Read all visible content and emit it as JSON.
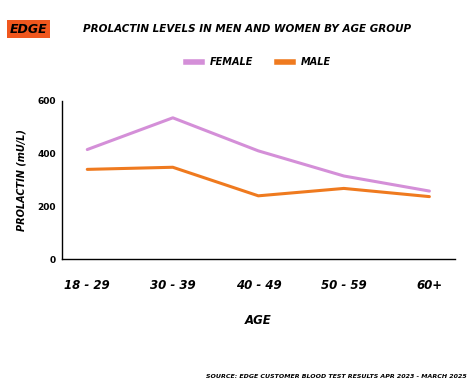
{
  "chart_data": {
    "type": "line",
    "logo": "EDGE",
    "title": "PROLACTIN LEVELS IN MEN AND WOMEN BY AGE GROUP",
    "xlabel": "AGE",
    "ylabel": "PROLACTIN (mU/L)",
    "source": "SOURCE: EDGE CUSTOMER BLOOD TEST RESULTS APR 2023 - MARCH 2025",
    "categories": [
      "18 - 29",
      "30 - 39",
      "40 - 49",
      "50 - 59",
      "60+"
    ],
    "series": [
      {
        "name": "FEMALE",
        "color": "#d48fd8",
        "values": [
          415,
          535,
          410,
          315,
          258
        ]
      },
      {
        "name": "MALE",
        "color": "#ef7a1f",
        "values": [
          340,
          348,
          240,
          268,
          237
        ]
      }
    ],
    "ylim": [
      0,
      600
    ],
    "yticks": [
      0,
      200,
      400,
      600
    ],
    "legend": "upper center",
    "grid": false
  }
}
